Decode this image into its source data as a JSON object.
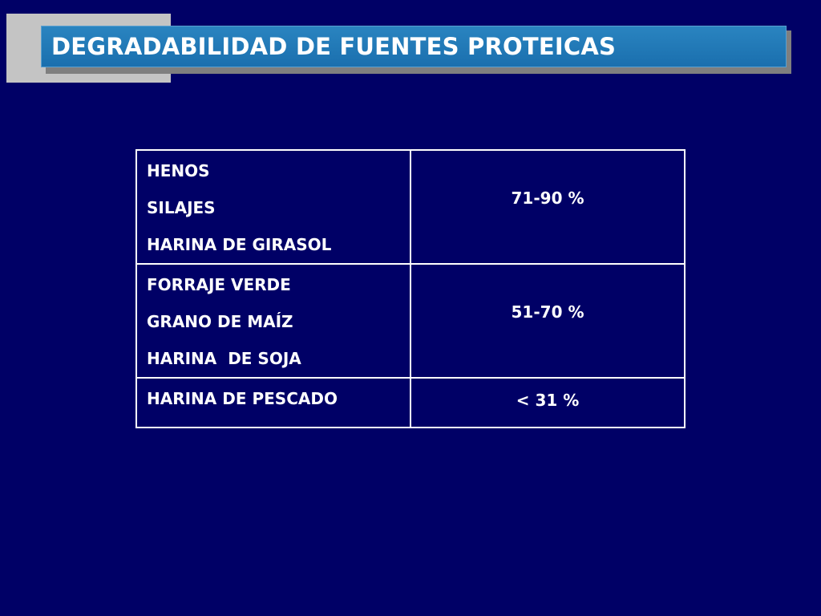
{
  "slide": {
    "title": "DEGRADABILIDAD DE FUENTES PROTEICAS"
  },
  "table": {
    "rows": [
      {
        "sources": [
          "HENOS",
          "SILAJES",
          "HARINA DE GIRASOL"
        ],
        "degradability": "71-90 %"
      },
      {
        "sources": [
          "FORRAJE VERDE",
          "GRANO DE MAÍZ",
          "HARINA  DE SOJA"
        ],
        "degradability": "51-70 %"
      },
      {
        "sources": [
          "HARINA DE PESCADO"
        ],
        "degradability": "< 31 %"
      }
    ]
  },
  "colors": {
    "background": "#000066",
    "title_bar": "#1f78b4",
    "title_accent_block": "#c4c4c4",
    "text": "#ffffff"
  }
}
